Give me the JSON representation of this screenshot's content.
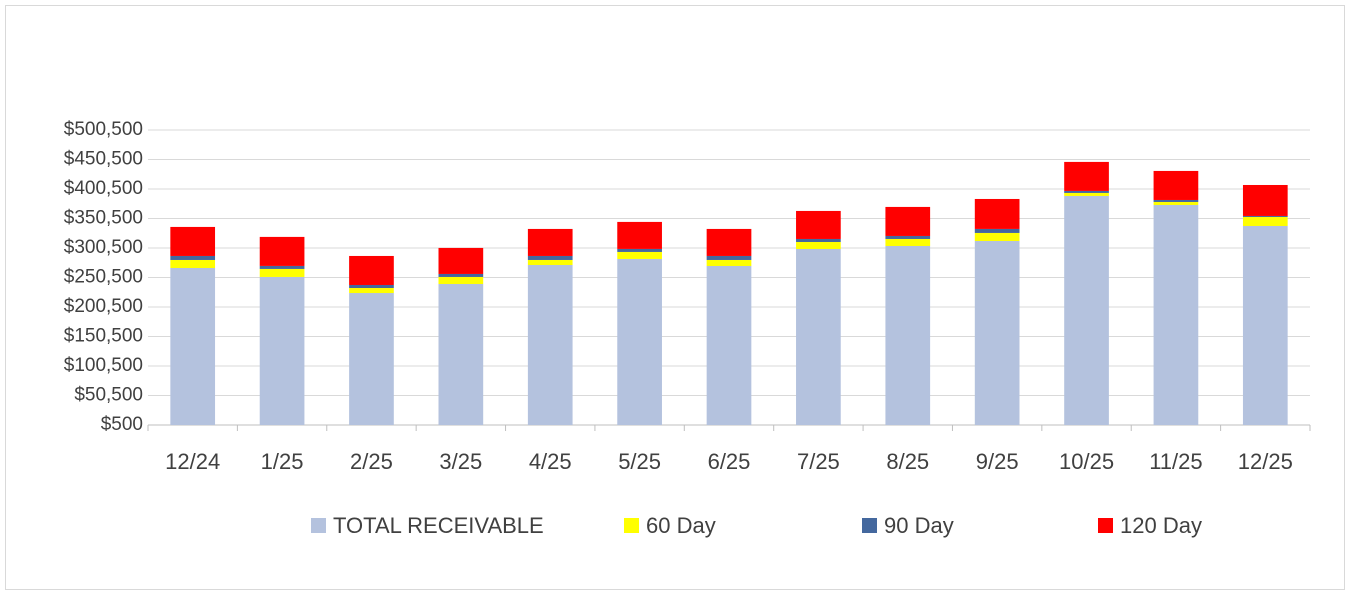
{
  "chart_data": {
    "type": "stacked_bar",
    "categories": [
      "12/24",
      "1/25",
      "2/25",
      "3/25",
      "4/25",
      "5/25",
      "6/25",
      "7/25",
      "8/25",
      "9/25",
      "10/25",
      "11/25",
      "12/25"
    ],
    "series": [
      {
        "name": "TOTAL RECEIVABLE",
        "color": "#b4c2de",
        "values": [
          266600,
          251400,
          224200,
          239500,
          271700,
          281900,
          270000,
          298800,
          303900,
          312400,
          388700,
          373400,
          337800
        ]
      },
      {
        "name": "60 Day",
        "color": "#ffff00",
        "values": [
          13600,
          13600,
          8500,
          11900,
          8500,
          11900,
          10200,
          11900,
          11900,
          13600,
          5100,
          5100,
          15300
        ]
      },
      {
        "name": "90 Day",
        "color": "#44689e",
        "values": [
          6800,
          5100,
          5100,
          5100,
          6800,
          5100,
          6800,
          5100,
          5100,
          6800,
          3400,
          3400,
          1700
        ]
      },
      {
        "name": "120 Day",
        "color": "#ff0000",
        "values": [
          49200,
          49200,
          49200,
          44100,
          45800,
          45800,
          45800,
          47500,
          49200,
          50800,
          49200,
          49200,
          52500
        ]
      }
    ],
    "ylim": [
      500,
      500500
    ],
    "yticks": [
      {
        "value": 500,
        "label": "$500"
      },
      {
        "value": 50500,
        "label": "$50,500"
      },
      {
        "value": 100500,
        "label": "$100,500"
      },
      {
        "value": 150500,
        "label": "$150,500"
      },
      {
        "value": 200500,
        "label": "$200,500"
      },
      {
        "value": 250500,
        "label": "$250,500"
      },
      {
        "value": 300500,
        "label": "$300,500"
      },
      {
        "value": 350500,
        "label": "$350,500"
      },
      {
        "value": 400500,
        "label": "$400,500"
      },
      {
        "value": 450500,
        "label": "$450,500"
      },
      {
        "value": 500500,
        "label": "$500,500"
      }
    ],
    "grid": true,
    "legend": "bottom"
  }
}
